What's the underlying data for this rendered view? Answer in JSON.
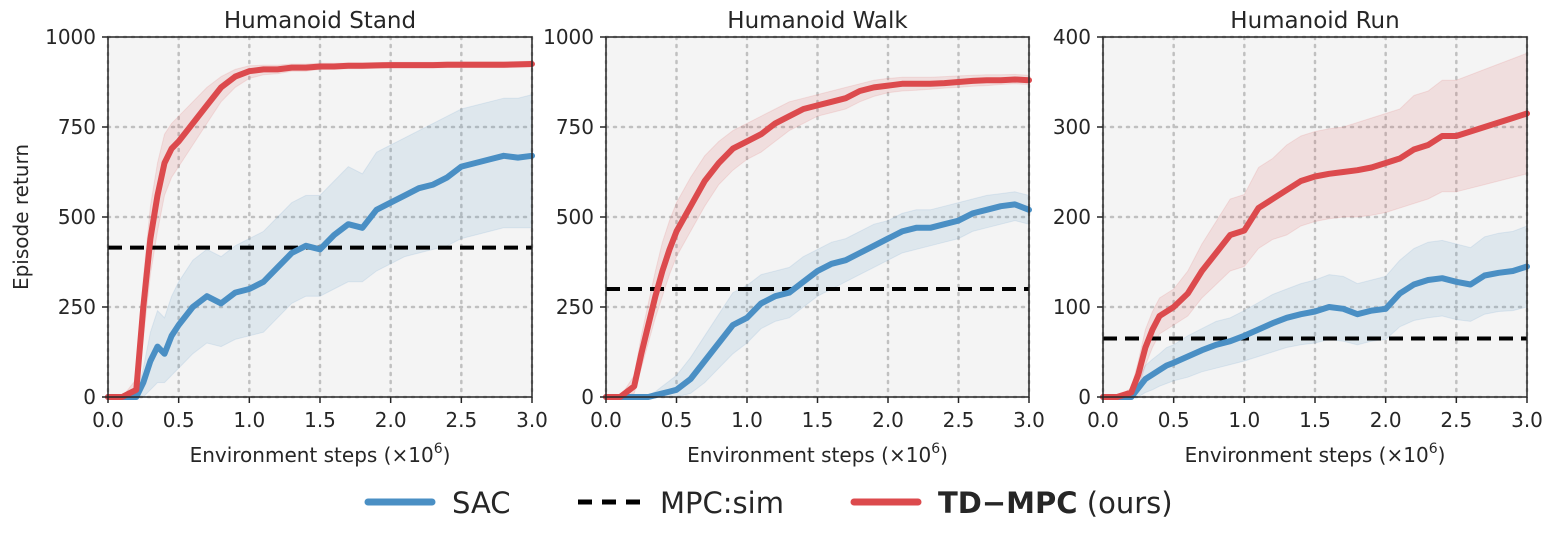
{
  "legend": {
    "sac": "SAC",
    "mpc": "MPC:sim",
    "tdmpc_bold": "TD−MPC",
    "tdmpc_suffix": " (ours)"
  },
  "colors": {
    "sac": "#4a8fc4",
    "mpc": "#000000",
    "tdmpc": "#dc4a4d",
    "background": "#f4f4f4",
    "grid": "#c0c0c0"
  },
  "chart_data": [
    {
      "type": "line",
      "title": "Humanoid Stand",
      "xlabel": "Environment steps (×10",
      "xlabel_sup": "6",
      "xlabel_end": ")",
      "ylabel": "Episode return",
      "xlim": [
        0,
        3
      ],
      "ylim": [
        0,
        1000
      ],
      "xticks": [
        "0.0",
        "0.5",
        "1.0",
        "1.5",
        "2.0",
        "2.5",
        "3.0"
      ],
      "yticks": [
        "0",
        "250",
        "500",
        "750",
        "1000"
      ],
      "mpc_baseline": 415,
      "x": [
        0,
        0.1,
        0.2,
        0.25,
        0.3,
        0.35,
        0.4,
        0.45,
        0.5,
        0.6,
        0.7,
        0.8,
        0.9,
        1.0,
        1.1,
        1.2,
        1.3,
        1.4,
        1.5,
        1.6,
        1.7,
        1.8,
        1.9,
        2.0,
        2.1,
        2.2,
        2.3,
        2.4,
        2.5,
        2.6,
        2.7,
        2.8,
        2.9,
        3.0
      ],
      "series": [
        {
          "name": "SAC",
          "values": [
            0,
            0,
            0,
            40,
            100,
            140,
            120,
            170,
            200,
            250,
            280,
            260,
            290,
            300,
            320,
            360,
            400,
            420,
            410,
            450,
            480,
            470,
            520,
            540,
            560,
            580,
            590,
            610,
            640,
            650,
            660,
            670,
            665,
            670
          ],
          "lower": [
            0,
            0,
            0,
            0,
            20,
            40,
            40,
            60,
            80,
            120,
            150,
            140,
            160,
            170,
            180,
            220,
            260,
            280,
            280,
            300,
            320,
            320,
            350,
            370,
            390,
            400,
            410,
            420,
            440,
            450,
            460,
            470,
            470,
            470
          ],
          "upper": [
            0,
            0,
            0,
            80,
            180,
            240,
            220,
            280,
            320,
            380,
            410,
            390,
            420,
            440,
            460,
            500,
            540,
            560,
            560,
            600,
            640,
            620,
            680,
            700,
            720,
            740,
            760,
            780,
            800,
            810,
            820,
            830,
            830,
            840
          ]
        },
        {
          "name": "TD−MPC",
          "values": [
            0,
            0,
            20,
            250,
            440,
            560,
            650,
            690,
            710,
            760,
            810,
            860,
            890,
            905,
            910,
            910,
            915,
            915,
            918,
            918,
            920,
            920,
            921,
            922,
            922,
            922,
            922,
            923,
            923,
            923,
            923,
            923,
            924,
            925
          ],
          "lower": [
            0,
            0,
            0,
            160,
            340,
            460,
            560,
            610,
            640,
            700,
            760,
            820,
            860,
            885,
            895,
            898,
            905,
            905,
            910,
            910,
            912,
            912,
            913,
            914,
            914,
            914,
            914,
            915,
            915,
            915,
            915,
            915,
            916,
            917
          ],
          "upper": [
            0,
            0,
            50,
            330,
            530,
            650,
            730,
            760,
            780,
            820,
            860,
            890,
            910,
            920,
            922,
            922,
            925,
            925,
            927,
            927,
            928,
            928,
            929,
            930,
            930,
            930,
            930,
            931,
            931,
            931,
            931,
            931,
            932,
            933
          ]
        }
      ]
    },
    {
      "type": "line",
      "title": "Humanoid Walk",
      "xlabel": "Environment steps (×10",
      "xlabel_sup": "6",
      "xlabel_end": ")",
      "ylabel": "",
      "xlim": [
        0,
        3
      ],
      "ylim": [
        0,
        1000
      ],
      "xticks": [
        "0.0",
        "0.5",
        "1.0",
        "1.5",
        "2.0",
        "2.5",
        "3.0"
      ],
      "yticks": [
        "0",
        "250",
        "500",
        "750",
        "1000"
      ],
      "mpc_baseline": 300,
      "x": [
        0,
        0.1,
        0.2,
        0.25,
        0.3,
        0.35,
        0.4,
        0.45,
        0.5,
        0.6,
        0.7,
        0.8,
        0.9,
        1.0,
        1.1,
        1.2,
        1.3,
        1.4,
        1.5,
        1.6,
        1.7,
        1.8,
        1.9,
        2.0,
        2.1,
        2.2,
        2.3,
        2.4,
        2.5,
        2.6,
        2.7,
        2.8,
        2.9,
        3.0
      ],
      "series": [
        {
          "name": "SAC",
          "values": [
            0,
            0,
            0,
            0,
            0,
            5,
            10,
            15,
            20,
            50,
            100,
            150,
            200,
            220,
            260,
            280,
            290,
            320,
            350,
            370,
            380,
            400,
            420,
            440,
            460,
            470,
            470,
            480,
            490,
            510,
            520,
            530,
            535,
            520
          ],
          "lower": [
            0,
            0,
            0,
            0,
            0,
            0,
            0,
            0,
            0,
            10,
            40,
            80,
            120,
            150,
            190,
            210,
            220,
            250,
            280,
            300,
            320,
            340,
            360,
            380,
            400,
            410,
            420,
            430,
            440,
            460,
            470,
            480,
            490,
            480
          ],
          "upper": [
            0,
            0,
            0,
            0,
            5,
            15,
            30,
            45,
            60,
            110,
            170,
            230,
            290,
            310,
            340,
            350,
            360,
            390,
            410,
            430,
            440,
            460,
            480,
            490,
            510,
            520,
            520,
            530,
            540,
            550,
            560,
            565,
            570,
            560
          ]
        },
        {
          "name": "TD−MPC",
          "values": [
            0,
            0,
            30,
            120,
            200,
            280,
            350,
            410,
            460,
            530,
            600,
            650,
            690,
            710,
            730,
            760,
            780,
            800,
            810,
            820,
            830,
            850,
            860,
            865,
            870,
            870,
            870,
            872,
            875,
            878,
            880,
            880,
            882,
            880
          ],
          "lower": [
            0,
            0,
            10,
            80,
            150,
            220,
            280,
            340,
            390,
            460,
            530,
            590,
            630,
            660,
            680,
            710,
            740,
            760,
            780,
            790,
            800,
            820,
            835,
            845,
            850,
            852,
            855,
            858,
            860,
            863,
            865,
            868,
            870,
            868
          ],
          "upper": [
            0,
            0,
            60,
            170,
            260,
            350,
            430,
            490,
            540,
            610,
            670,
            710,
            740,
            760,
            780,
            800,
            820,
            830,
            840,
            850,
            860,
            870,
            880,
            885,
            888,
            888,
            888,
            890,
            892,
            894,
            895,
            895,
            896,
            894
          ]
        }
      ]
    },
    {
      "type": "line",
      "title": "Humanoid Run",
      "xlabel": "Environment steps (×10",
      "xlabel_sup": "6",
      "xlabel_end": ")",
      "ylabel": "",
      "xlim": [
        0,
        3
      ],
      "ylim": [
        0,
        400
      ],
      "xticks": [
        "0.0",
        "0.5",
        "1.0",
        "1.5",
        "2.0",
        "2.5",
        "3.0"
      ],
      "yticks": [
        "0",
        "100",
        "200",
        "300",
        "400"
      ],
      "mpc_baseline": 65,
      "x": [
        0,
        0.1,
        0.2,
        0.25,
        0.3,
        0.35,
        0.4,
        0.45,
        0.5,
        0.6,
        0.7,
        0.8,
        0.9,
        1.0,
        1.1,
        1.2,
        1.3,
        1.4,
        1.5,
        1.6,
        1.7,
        1.8,
        1.9,
        2.0,
        2.1,
        2.2,
        2.3,
        2.4,
        2.5,
        2.6,
        2.7,
        2.8,
        2.9,
        3.0
      ],
      "series": [
        {
          "name": "SAC",
          "values": [
            0,
            0,
            0,
            10,
            20,
            25,
            30,
            35,
            38,
            45,
            52,
            58,
            62,
            68,
            75,
            82,
            88,
            92,
            95,
            100,
            98,
            92,
            96,
            98,
            115,
            125,
            130,
            132,
            128,
            125,
            135,
            138,
            140,
            145
          ],
          "lower": [
            0,
            0,
            0,
            0,
            5,
            8,
            12,
            15,
            18,
            22,
            28,
            32,
            36,
            40,
            45,
            50,
            55,
            58,
            60,
            64,
            62,
            58,
            62,
            64,
            78,
            85,
            88,
            90,
            86,
            84,
            92,
            95,
            96,
            100
          ],
          "upper": [
            0,
            0,
            0,
            20,
            35,
            42,
            48,
            55,
            58,
            68,
            76,
            84,
            88,
            96,
            105,
            114,
            120,
            126,
            130,
            136,
            134,
            126,
            130,
            134,
            152,
            165,
            172,
            174,
            170,
            166,
            178,
            182,
            184,
            190
          ]
        },
        {
          "name": "TD−MPC",
          "values": [
            0,
            0,
            5,
            25,
            55,
            75,
            90,
            95,
            100,
            115,
            140,
            160,
            180,
            185,
            210,
            220,
            230,
            240,
            245,
            248,
            250,
            252,
            255,
            260,
            265,
            275,
            280,
            290,
            290,
            295,
            300,
            305,
            310,
            315
          ],
          "lower": [
            0,
            0,
            0,
            10,
            35,
            55,
            70,
            75,
            80,
            90,
            110,
            125,
            140,
            145,
            165,
            175,
            180,
            190,
            195,
            198,
            200,
            200,
            202,
            205,
            210,
            215,
            220,
            228,
            228,
            232,
            236,
            240,
            244,
            248
          ],
          "upper": [
            0,
            0,
            10,
            40,
            75,
            95,
            110,
            115,
            120,
            140,
            170,
            195,
            220,
            225,
            255,
            265,
            280,
            290,
            295,
            298,
            300,
            305,
            310,
            315,
            320,
            335,
            340,
            352,
            352,
            358,
            364,
            370,
            376,
            382
          ]
        }
      ]
    }
  ]
}
